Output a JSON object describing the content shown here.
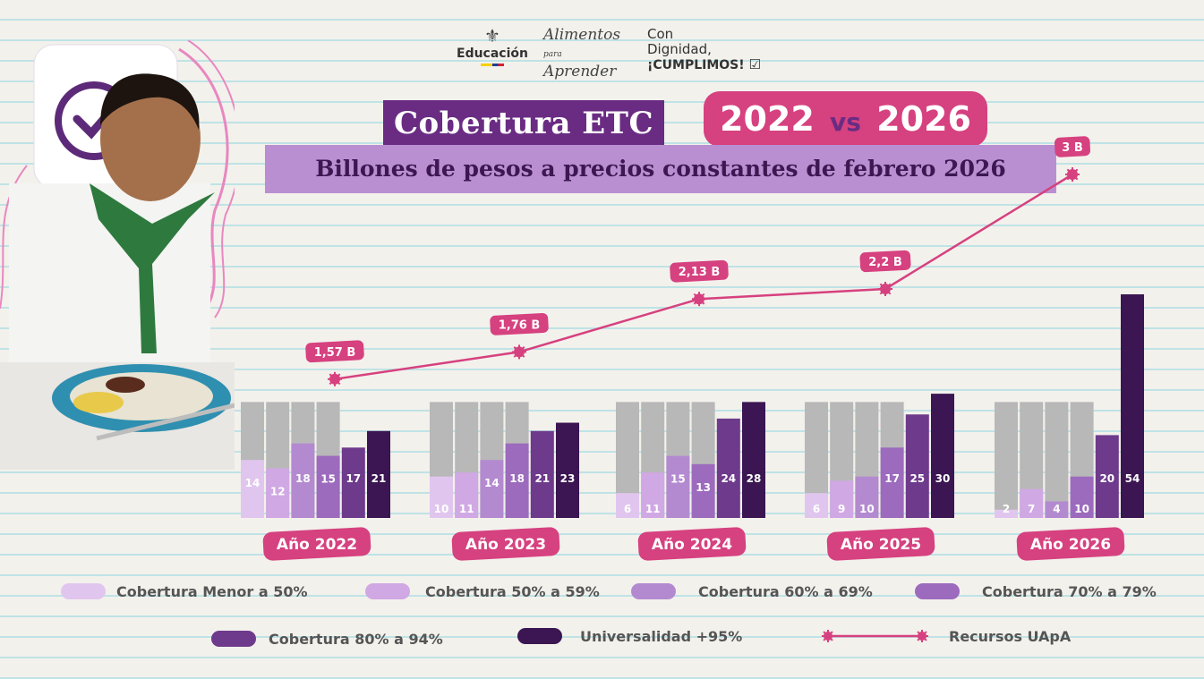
{
  "header": {
    "logo_education": "Educación",
    "logo_alimentos_1": "Alimentos",
    "logo_alimentos_para": "para",
    "logo_alimentos_2": "Aprender",
    "logo_con_1": "Con",
    "logo_con_2": "Dignidad,",
    "logo_con_3": "¡CUMPLIMOS!"
  },
  "title": {
    "main": "Cobertura ETC",
    "year_from": "2022",
    "vs": "vs",
    "year_to": "2026",
    "subtitle": "Billones de pesos a precios constantes de febrero 2026"
  },
  "colors": {
    "cat_menor_50": "#e0c6ee",
    "cat_50_59": "#d0a8e4",
    "cat_60_69": "#b38ad0",
    "cat_70_79": "#9c6bbd",
    "cat_80_94": "#6e3a8c",
    "cat_95": "#3b1652",
    "bar_background": "#b8b8b8",
    "line": "#d6417f",
    "label_bg": "#d6417f"
  },
  "chart_data": {
    "type": "bar",
    "categories": [
      "Año 2022",
      "Año 2023",
      "Año 2024",
      "Año 2025",
      "Año 2026"
    ],
    "series": [
      {
        "name": "Cobertura Menor a 50%",
        "values": [
          14,
          10,
          6,
          6,
          2
        ]
      },
      {
        "name": "Cobertura 50% a 59%",
        "values": [
          12,
          11,
          11,
          9,
          7
        ]
      },
      {
        "name": "Cobertura 60% a 69%",
        "values": [
          18,
          14,
          15,
          10,
          4
        ]
      },
      {
        "name": "Cobertura 70% a 79%",
        "values": [
          15,
          18,
          13,
          17,
          10
        ]
      },
      {
        "name": "Cobertura  80% a 94%",
        "values": [
          17,
          21,
          24,
          25,
          20
        ]
      },
      {
        "name": "Universalidad +95%",
        "values": [
          21,
          23,
          28,
          30,
          54
        ]
      }
    ],
    "line_series": {
      "name": "Recursos UApA",
      "values": [
        1.57,
        1.76,
        2.13,
        2.2,
        3
      ],
      "labels": [
        "1,57 B",
        "1,76 B",
        "2,13 B",
        "2,2 B",
        "3 B"
      ]
    },
    "legend": [
      "Cobertura Menor a 50%",
      "Cobertura 50% a 59%",
      "Cobertura 60% a 69%",
      "Cobertura 70% a 79%",
      "Cobertura  80% a 94%",
      "Universalidad +95%",
      "Recursos UApA"
    ],
    "legend_position": "bottom",
    "grid": false
  }
}
